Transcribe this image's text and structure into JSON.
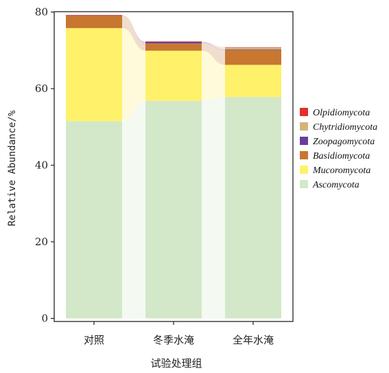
{
  "chart_data": {
    "type": "bar",
    "stacked": true,
    "categories": [
      "对照",
      "冬季水淹",
      "全年水淹"
    ],
    "xlabel": "试验处理组",
    "ylabel": "Relative Abundance/%",
    "ylim": [
      0,
      80
    ],
    "yticks": [
      0,
      20,
      40,
      60,
      80
    ],
    "series": [
      {
        "name": "Ascomycota",
        "color": "#d3e8c9",
        "values": [
          51.5,
          56.8,
          57.8
        ]
      },
      {
        "name": "Mucoromycota",
        "color": "#fff16a",
        "values": [
          24.3,
          13.1,
          8.4
        ]
      },
      {
        "name": "Basidiomycota",
        "color": "#c87731",
        "values": [
          3.3,
          1.9,
          3.9
        ]
      },
      {
        "name": "Zoopagomycota",
        "color": "#6a3d9a",
        "values": [
          0.05,
          0.4,
          0.15
        ]
      },
      {
        "name": "Chytridiomycota",
        "color": "#d4b47c",
        "values": [
          0.05,
          0.1,
          0.45
        ]
      },
      {
        "name": "Olpidiomycota",
        "color": "#e0302a",
        "values": [
          0.02,
          0.02,
          0.1
        ]
      }
    ],
    "legend": {
      "position": "right",
      "items": [
        "Olpidiomycota",
        "Chytridiomycota",
        "Zoopagomycota",
        "Basidiomycota",
        "Mucoromycota",
        "Ascomycota"
      ]
    }
  }
}
